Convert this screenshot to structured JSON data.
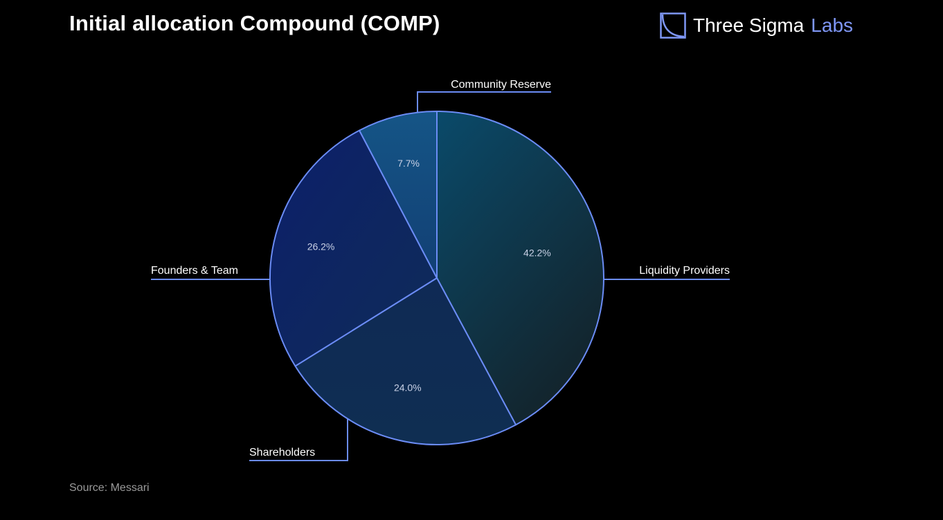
{
  "header": {
    "title": "Initial allocation Compound (COMP)"
  },
  "brand": {
    "name_primary": "Three Sigma",
    "name_secondary": "Labs",
    "accent_color": "#7f97f6",
    "icon": "three-sigma-logo-icon"
  },
  "footer": {
    "source": "Source: Messari"
  },
  "chart_data": {
    "type": "pie",
    "title": "Initial allocation Compound (COMP)",
    "unit": "%",
    "slices": [
      {
        "label": "Liquidity Providers",
        "value": 42.2,
        "display": "42.2%",
        "color": "#0c3554"
      },
      {
        "label": "Shareholders",
        "value": 24.0,
        "display": "24.0%",
        "color": "#0f2a52"
      },
      {
        "label": "Founders & Team",
        "value": 26.2,
        "display": "26.2%",
        "color": "#0d2462"
      },
      {
        "label": "Community Reserve",
        "value": 7.7,
        "display": "7.7%",
        "color": "#15497e"
      }
    ],
    "start_angle": "12 o'clock",
    "direction": "clockwise",
    "edge_color": "#6b8cf5",
    "legend": "none (leader-line labels)"
  }
}
